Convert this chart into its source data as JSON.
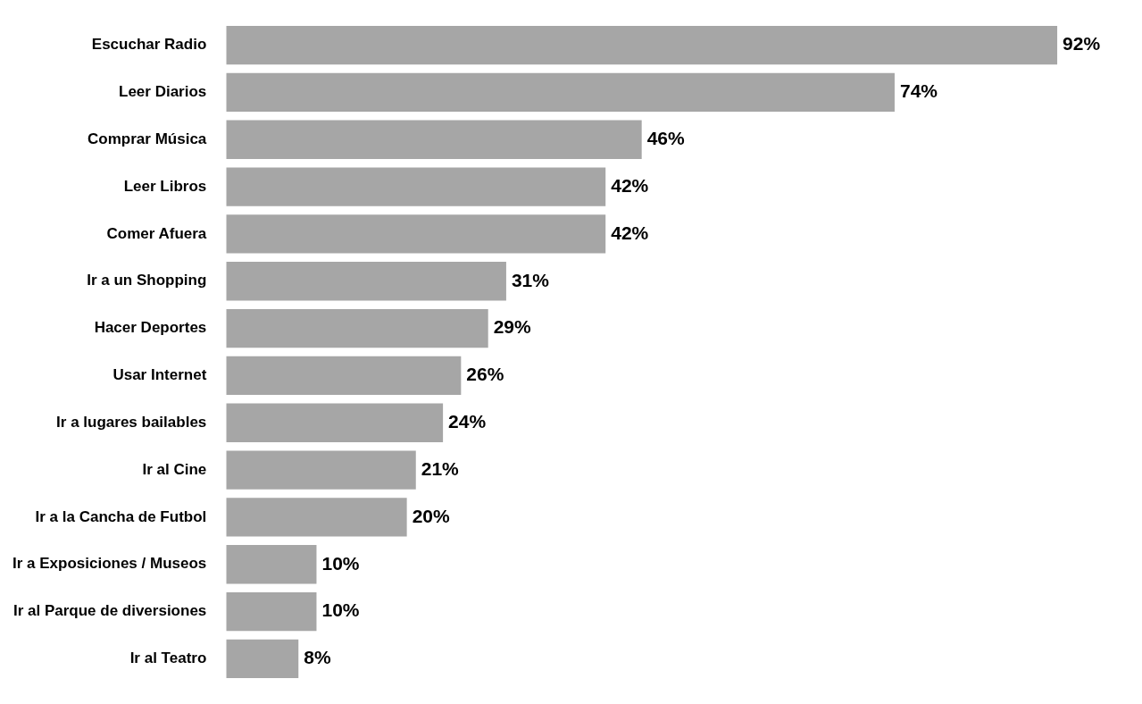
{
  "chart_data": {
    "type": "bar",
    "orientation": "horizontal",
    "categories": [
      "Escuchar Radio",
      "Leer Diarios",
      "Comprar Música",
      "Leer Libros",
      "Comer Afuera",
      "Ir a un Shopping",
      "Hacer Deportes",
      "Usar Internet",
      "Ir a lugares bailables",
      "Ir al Cine",
      "Ir a la Cancha de Futbol",
      "Ir a Exposiciones / Museos",
      "Ir al Parque de diversiones",
      "Ir al Teatro"
    ],
    "values": [
      92,
      74,
      46,
      42,
      42,
      31,
      29,
      26,
      24,
      21,
      20,
      10,
      10,
      8
    ],
    "value_labels": [
      "92%",
      "74%",
      "46%",
      "42%",
      "42%",
      "31%",
      "29%",
      "26%",
      "24%",
      "21%",
      "20%",
      "10%",
      "10%",
      "8%"
    ],
    "color": "#a6a6a6",
    "tick_labels": "y",
    "grid": false,
    "legend": false
  }
}
